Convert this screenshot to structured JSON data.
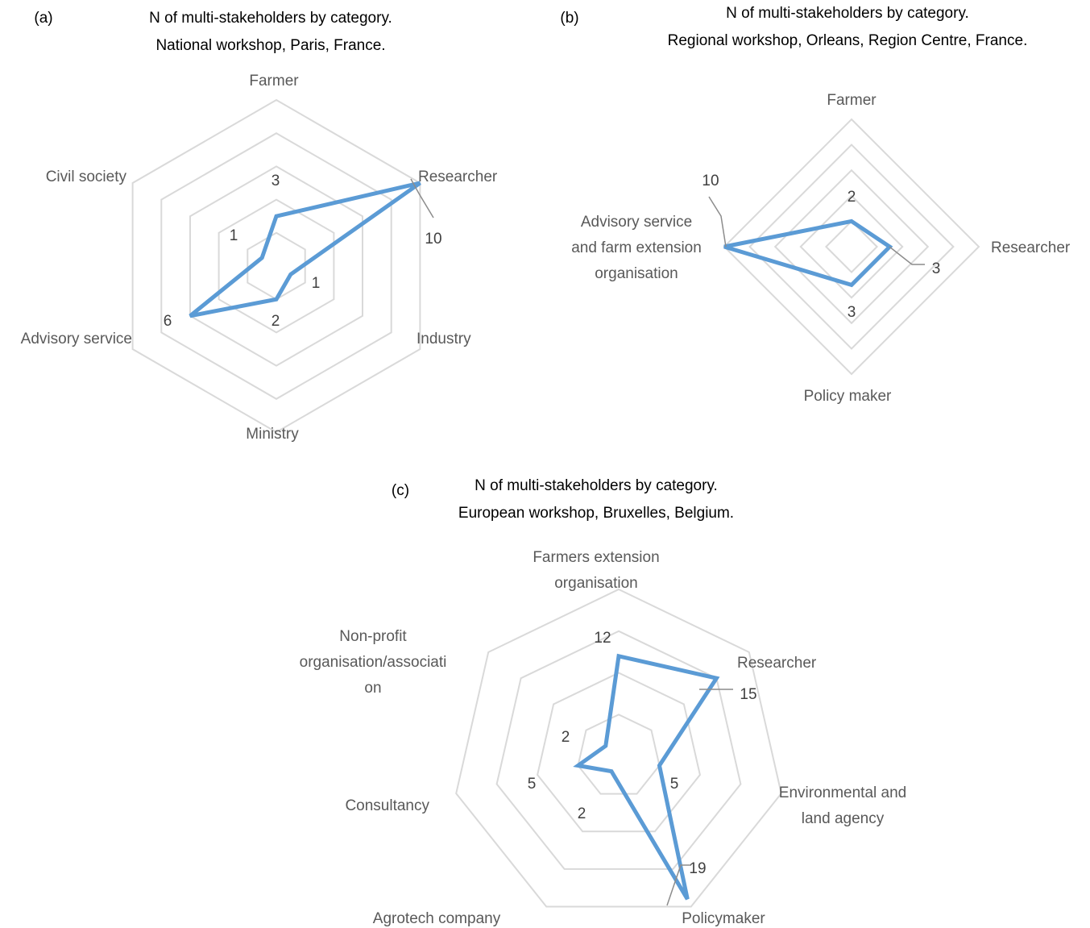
{
  "chart_data": [
    {
      "type": "radar",
      "panel": "(a)",
      "title_lines": [
        "N of multi-stakeholders by category.",
        "National workshop, Paris, France."
      ],
      "categories": [
        "Farmer",
        "Researcher",
        "Industry",
        "Ministry",
        "Advisory service",
        "Civil society"
      ],
      "values": [
        3,
        10,
        1,
        2,
        6,
        1
      ],
      "data_labels": [
        "3",
        "10",
        "1",
        "2",
        "6",
        "1"
      ],
      "category_labels": [
        [
          "Farmer"
        ],
        [
          "Researcher"
        ],
        [
          "Industry"
        ],
        [
          "Ministry"
        ],
        [
          "Advisory service"
        ],
        [
          "Civil society"
        ]
      ],
      "rlim": [
        0,
        10
      ],
      "grid_rings": 5,
      "grid": true,
      "series_color": "#5B9BD5",
      "grid_color": "#D9D9D9"
    },
    {
      "type": "radar",
      "panel": "(b)",
      "title_lines": [
        "N of multi-stakeholders by category.",
        "Regional workshop, Orleans, Region Centre, France."
      ],
      "categories": [
        "Farmer",
        "Researcher",
        "Policy maker",
        "Advisory service and farm extension organisation"
      ],
      "values": [
        2,
        3,
        3,
        10
      ],
      "data_labels": [
        "2",
        "3",
        "3",
        "10"
      ],
      "category_labels": [
        [
          "Farmer"
        ],
        [
          "Researcher"
        ],
        [
          "Policy maker"
        ],
        [
          "Advisory service",
          "and farm extension",
          "organisation"
        ]
      ],
      "rlim": [
        0,
        10
      ],
      "grid_rings": 5,
      "grid": true,
      "series_color": "#5B9BD5",
      "grid_color": "#D9D9D9"
    },
    {
      "type": "radar",
      "panel": "(c)",
      "title_lines": [
        "N of multi-stakeholders by category.",
        "European workshop, Bruxelles, Belgium."
      ],
      "categories": [
        "Farmers extension organisation",
        "Researcher",
        "Environmental and land agency",
        "Policymaker",
        "Agrotech company",
        "Consultancy",
        "Non-profit organisation/association"
      ],
      "values": [
        12,
        15,
        5,
        19,
        2,
        5,
        2
      ],
      "data_labels": [
        "12",
        "15",
        "5",
        "19",
        "2",
        "5",
        "2"
      ],
      "category_labels": [
        [
          "Farmers extension",
          "organisation"
        ],
        [
          "Researcher"
        ],
        [
          "Environmental and",
          "land agency"
        ],
        [
          "Policymaker"
        ],
        [
          "Agrotech company"
        ],
        [
          "Consultancy"
        ],
        [
          "Non-profit",
          "organisation/associati",
          "on"
        ]
      ],
      "rlim": [
        0,
        20
      ],
      "grid_rings": 4,
      "grid": true,
      "series_color": "#5B9BD5",
      "grid_color": "#D9D9D9"
    }
  ]
}
